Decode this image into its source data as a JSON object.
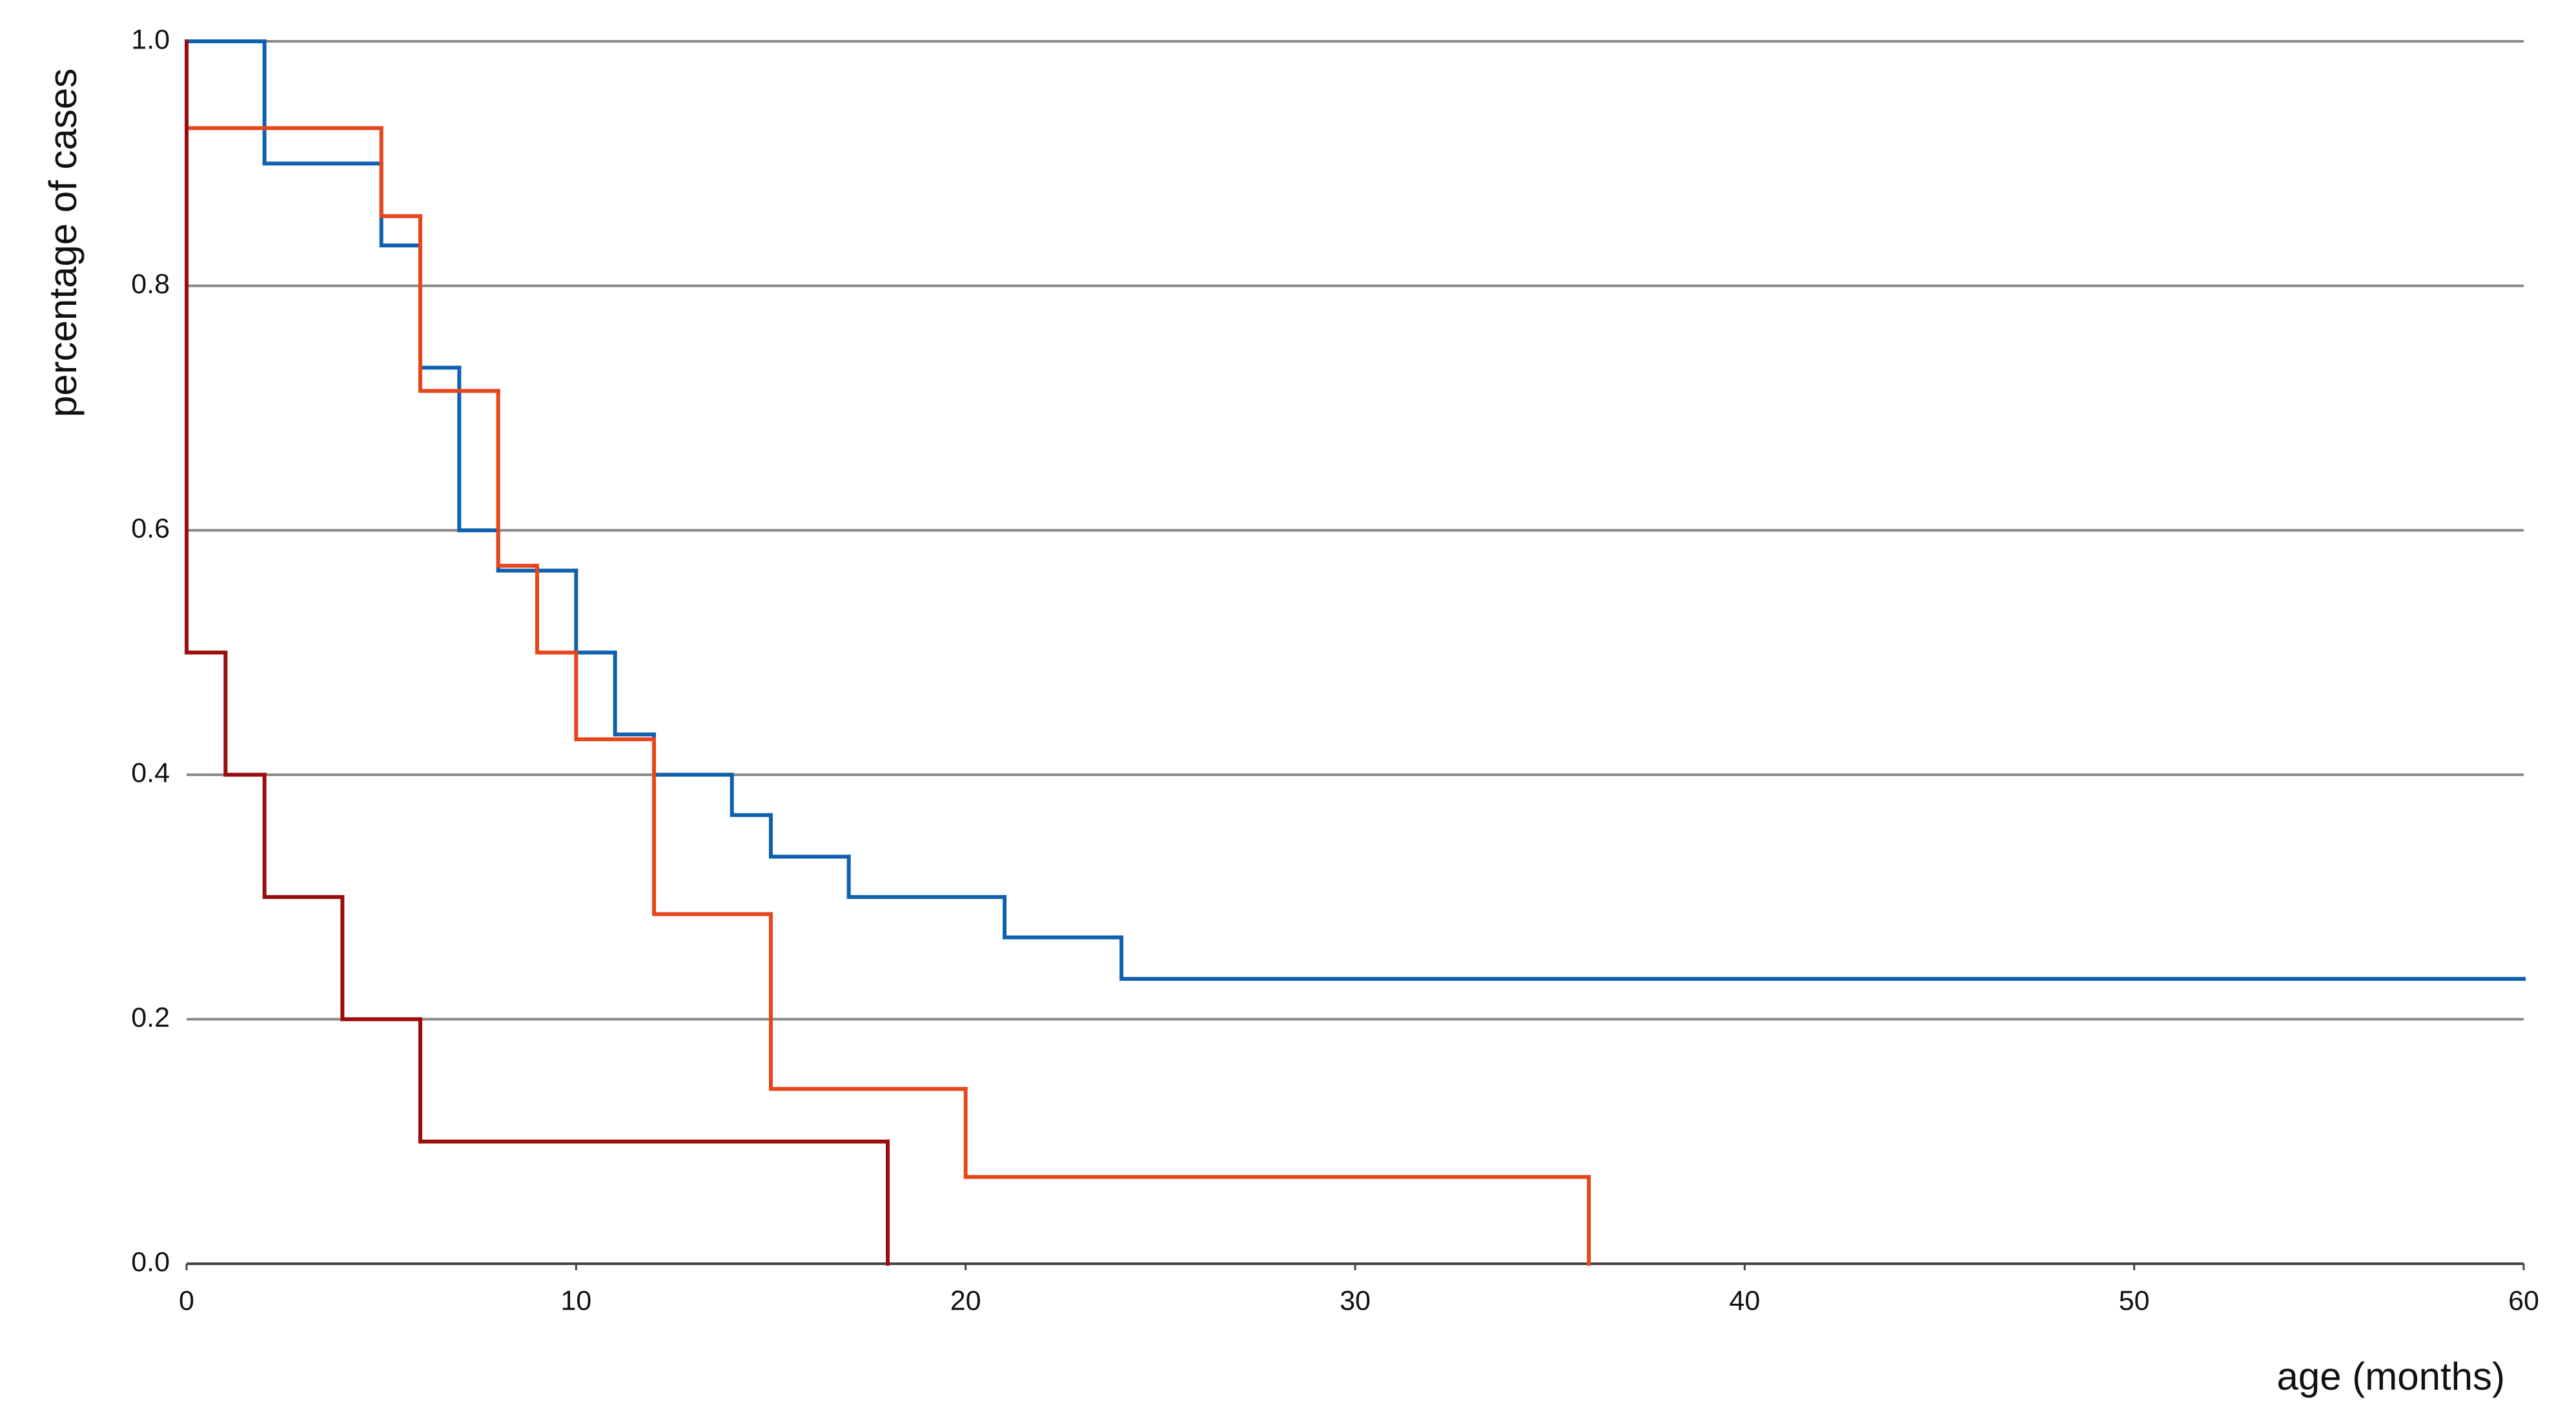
{
  "chart_data": {
    "type": "line",
    "step": "post",
    "y_label": "percentage of cases",
    "x_label": "age (months)",
    "xlim": [
      0,
      60
    ],
    "xticks": [
      0,
      10,
      20,
      30,
      40,
      50,
      60
    ],
    "ylim": [
      0,
      1
    ],
    "yticks": [
      {
        "value": 0,
        "label": "0.0"
      },
      0.2,
      0.4,
      0.6,
      0.8,
      {
        "value": 1,
        "label": "1.0"
      }
    ],
    "grid": true,
    "series": [
      {
        "color": "#1060b0",
        "x": [
          0,
          2,
          5,
          6,
          7,
          8,
          10,
          11,
          12,
          14,
          15,
          17,
          21,
          24,
          60
        ],
        "values": [
          1,
          0.9,
          0.833,
          0.733,
          0.6,
          0.567,
          0.5,
          0.433,
          0.4,
          0.367,
          0.333,
          0.3,
          0.267,
          0.233,
          0.233
        ]
      },
      {
        "color": "#e8461a",
        "x": [
          0,
          0,
          5,
          6,
          8,
          9,
          10,
          12,
          15,
          20,
          36
        ],
        "values": [
          1,
          0.929,
          0.857,
          0.714,
          0.571,
          0.5,
          0.429,
          0.286,
          0.143,
          0.071,
          0
        ]
      },
      {
        "color": "#9b0c0c",
        "x": [
          0,
          0,
          1,
          2,
          4,
          6,
          18
        ],
        "values": [
          1,
          0.5,
          0.4,
          0.3,
          0.2,
          0.1,
          0
        ]
      }
    ]
  }
}
